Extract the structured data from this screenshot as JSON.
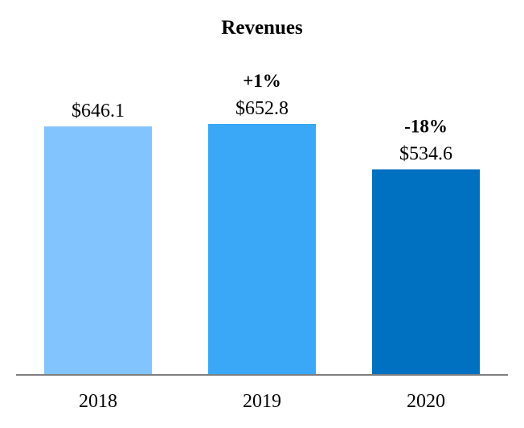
{
  "chart_data": {
    "type": "bar",
    "title": "Revenues",
    "xlabel": "",
    "ylabel": "",
    "categories": [
      "2018",
      "2019",
      "2020"
    ],
    "values": [
      646.1,
      652.8,
      534.6
    ],
    "value_labels": [
      "$646.1",
      "$652.8",
      "$534.6"
    ],
    "change_labels": [
      "",
      "+1%",
      "-18%"
    ],
    "bar_colors": [
      "#82c4fd",
      "#3aa8f7",
      "#0070c0"
    ],
    "axis_color": "#7f7f7f",
    "ylim": [
      0,
      652.8
    ],
    "grid": false,
    "legend": "none"
  }
}
